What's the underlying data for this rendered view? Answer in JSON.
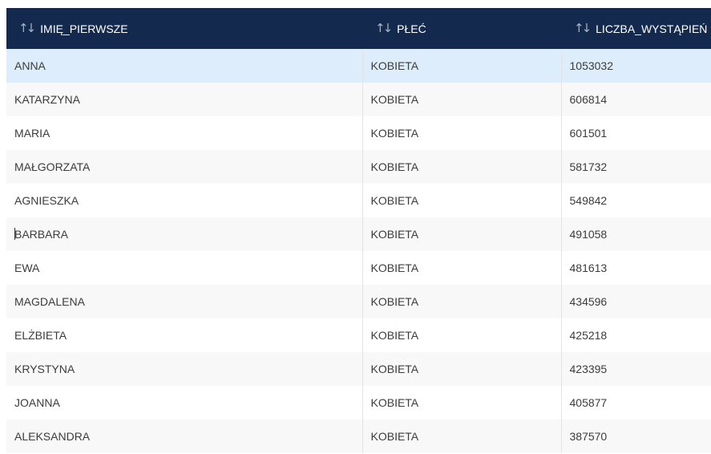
{
  "table": {
    "columns": [
      {
        "label": "IMIĘ_PIERWSZE",
        "sort_icon": "sort-updown-icon"
      },
      {
        "label": "PŁEĆ",
        "sort_icon": "sort-updown-icon"
      },
      {
        "label": "LICZBA_WYSTĄPIEŃ",
        "sort_icon": "sort-updown-icon"
      }
    ],
    "sort_glyph": "↑↓",
    "rows": [
      {
        "name": "ANNA",
        "gender": "KOBIETA",
        "count": "1053032",
        "selected": true
      },
      {
        "name": "KATARZYNA",
        "gender": "KOBIETA",
        "count": "606814"
      },
      {
        "name": "MARIA",
        "gender": "KOBIETA",
        "count": "601501"
      },
      {
        "name": "MAŁGORZATA",
        "gender": "KOBIETA",
        "count": "581732"
      },
      {
        "name": "AGNIESZKA",
        "gender": "KOBIETA",
        "count": "549842"
      },
      {
        "name": "BARBARA",
        "gender": "KOBIETA",
        "count": "491058"
      },
      {
        "name": "EWA",
        "gender": "KOBIETA",
        "count": "481613"
      },
      {
        "name": "MAGDALENA",
        "gender": "KOBIETA",
        "count": "434596"
      },
      {
        "name": "ELŻBIETA",
        "gender": "KOBIETA",
        "count": "425218"
      },
      {
        "name": "KRYSTYNA",
        "gender": "KOBIETA",
        "count": "423395"
      },
      {
        "name": "JOANNA",
        "gender": "KOBIETA",
        "count": "405877"
      },
      {
        "name": "ALEKSANDRA",
        "gender": "KOBIETA",
        "count": "387570"
      }
    ]
  },
  "colors": {
    "header_bg": "#132a4e",
    "header_text": "#ffffff",
    "selected_row_bg": "#deedfb",
    "alt_row_bg": "#f8f8f8"
  }
}
